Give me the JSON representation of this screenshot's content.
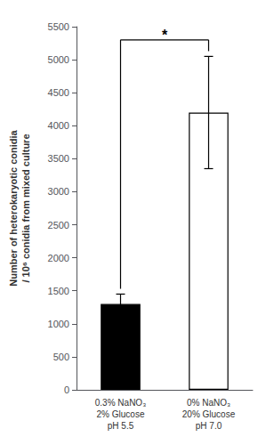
{
  "chart_data": {
    "type": "bar",
    "categories": [
      "0.3% NaNO₃\n2% Glucose\npH 5.5",
      "0% NaNO₃\n20% Glucose\npH 7.0"
    ],
    "values": [
      1300,
      4200
    ],
    "errors": [
      150,
      850
    ],
    "colors": [
      "#000000",
      "#ffffff"
    ],
    "ylabel": "Number of heterokaryotic conidia\n/ 10⁶ conidia from mixed culture",
    "ylim": [
      0,
      5500
    ],
    "yticks": [
      0,
      500,
      1000,
      1500,
      2000,
      2500,
      3000,
      3500,
      4000,
      4500,
      5000,
      5500
    ],
    "grid": false,
    "annotations": [
      {
        "text": "*",
        "y": 5340,
        "bracket": {
          "y": 5300,
          "bottoms": [
            1530,
            5130
          ]
        }
      }
    ]
  }
}
